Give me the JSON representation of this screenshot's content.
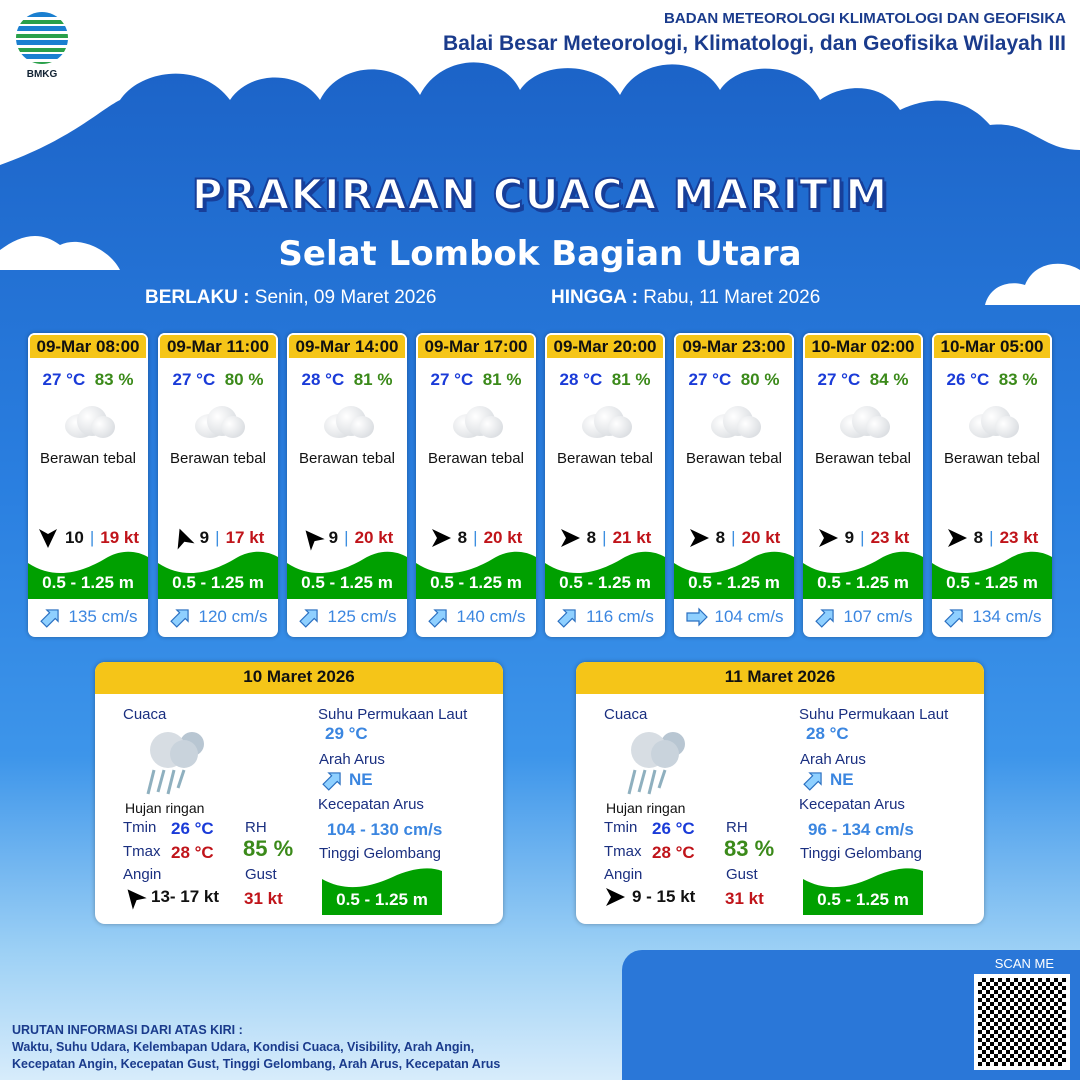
{
  "header": {
    "logo_text": "BMKG",
    "org_line1": "BADAN METEOROLOGI KLIMATOLOGI DAN GEOFISIKA",
    "org_line2": "Balai Besar Meteorologi, Klimatologi, dan Geofisika Wilayah III"
  },
  "title": "PRAKIRAAN CUACA MARITIM",
  "subtitle": "Selat Lombok Bagian Utara",
  "validity": {
    "from_label": "BERLAKU :",
    "from_value": "Senin, 09 Maret 2026",
    "to_label": "HINGGA :",
    "to_value": "Rabu, 11 Maret 2026"
  },
  "colors": {
    "header_yellow": "#f5c518",
    "wave_green": "#00a000",
    "temp_blue": "#1a3bd8",
    "rh_green": "#3b8a1a",
    "gust_red": "#c0141a",
    "current_blue": "#3b86e0"
  },
  "cards": [
    {
      "time": "09-Mar 08:00",
      "temp": "27 °C",
      "rh": "83 %",
      "weather": "Berawan tebal",
      "icon": "cloud-icon",
      "wind_speed": "10",
      "gust": "19 kt",
      "wind_dir_deg": 90,
      "wave": "0.5 - 1.25 m",
      "current": "135 cm/s",
      "current_dir_deg": -45
    },
    {
      "time": "09-Mar 11:00",
      "temp": "27 °C",
      "rh": "80 %",
      "weather": "Berawan tebal",
      "icon": "cloud-icon",
      "wind_speed": "9",
      "gust": "17 kt",
      "wind_dir_deg": -110,
      "wave": "0.5 - 1.25 m",
      "current": "120 cm/s",
      "current_dir_deg": -45
    },
    {
      "time": "09-Mar 14:00",
      "temp": "28 °C",
      "rh": "81 %",
      "weather": "Berawan tebal",
      "icon": "cloud-icon",
      "wind_speed": "9",
      "gust": "20 kt",
      "wind_dir_deg": -130,
      "wave": "0.5 - 1.25 m",
      "current": "125 cm/s",
      "current_dir_deg": -45
    },
    {
      "time": "09-Mar 17:00",
      "temp": "27 °C",
      "rh": "81 %",
      "weather": "Berawan tebal",
      "icon": "cloud-icon",
      "wind_speed": "8",
      "gust": "20 kt",
      "wind_dir_deg": 0,
      "wave": "0.5 - 1.25 m",
      "current": "140 cm/s",
      "current_dir_deg": -45
    },
    {
      "time": "09-Mar 20:00",
      "temp": "28 °C",
      "rh": "81 %",
      "weather": "Berawan tebal",
      "icon": "cloud-icon",
      "wind_speed": "8",
      "gust": "21 kt",
      "wind_dir_deg": 0,
      "wave": "0.5 - 1.25 m",
      "current": "116 cm/s",
      "current_dir_deg": -45
    },
    {
      "time": "09-Mar 23:00",
      "temp": "27 °C",
      "rh": "80 %",
      "weather": "Berawan tebal",
      "icon": "cloud-icon",
      "wind_speed": "8",
      "gust": "20 kt",
      "wind_dir_deg": 0,
      "wave": "0.5 - 1.25 m",
      "current": "104 cm/s",
      "current_dir_deg": 0
    },
    {
      "time": "10-Mar 02:00",
      "temp": "27 °C",
      "rh": "84 %",
      "weather": "Berawan tebal",
      "icon": "cloud-icon",
      "wind_speed": "9",
      "gust": "23 kt",
      "wind_dir_deg": 0,
      "wave": "0.5 - 1.25 m",
      "current": "107 cm/s",
      "current_dir_deg": -45
    },
    {
      "time": "10-Mar 05:00",
      "temp": "26 °C",
      "rh": "83 %",
      "weather": "Berawan tebal",
      "icon": "cloud-icon",
      "wind_speed": "8",
      "gust": "23 kt",
      "wind_dir_deg": 0,
      "wave": "0.5 - 1.25 m",
      "current": "134 cm/s",
      "current_dir_deg": -45
    }
  ],
  "labels": {
    "cuaca": "Cuaca",
    "tmin": "Tmin",
    "tmax": "Tmax",
    "angin": "Angin",
    "rh": "RH",
    "gust": "Gust",
    "sst": "Suhu Permukaan Laut",
    "arah_arus": "Arah Arus",
    "kec_arus": "Kecepatan Arus",
    "tinggi": "Tinggi Gelombang"
  },
  "days": [
    {
      "date": "10 Maret 2026",
      "weather": "Hujan ringan",
      "icon": "rain-cloud-icon",
      "tmin": "26 °C",
      "tmax": "28 °C",
      "rh": "85 %",
      "wind": "13- 17 kt",
      "wind_dir_deg": -130,
      "gust": "31 kt",
      "sst": "29 °C",
      "current_dir": "NE",
      "current_speed": "104  - 130 cm/s",
      "wave": "0.5 - 1.25 m"
    },
    {
      "date": "11 Maret 2026",
      "weather": "Hujan ringan",
      "icon": "rain-cloud-icon",
      "tmin": "26 °C",
      "tmax": "28 °C",
      "rh": "83 %",
      "wind": "9  - 15 kt",
      "wind_dir_deg": 0,
      "gust": "31 kt",
      "sst": "28 °C",
      "current_dir": "NE",
      "current_speed": "96 - 134 cm/s",
      "wave": "0.5 - 1.25 m"
    }
  ],
  "qr": {
    "label": "SCAN ME"
  },
  "footer": {
    "line1": "URUTAN INFORMASI DARI ATAS KIRI :",
    "line2": "Waktu, Suhu Udara, Kelembapan Udara, Kondisi Cuaca, Visibility, Arah Angin,",
    "line3": "Kecepatan Angin, Kecepatan Gust, Tinggi Gelombang, Arah Arus, Kecepatan Arus"
  }
}
